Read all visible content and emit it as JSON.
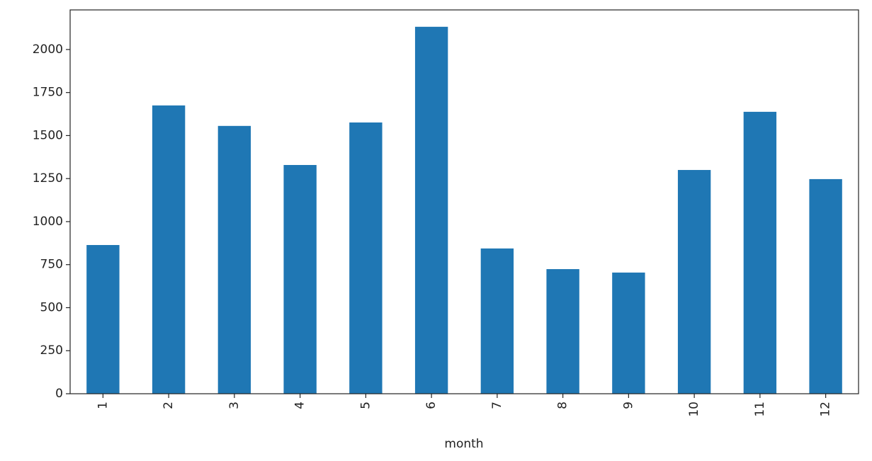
{
  "chart_data": {
    "type": "bar",
    "x_label": "month",
    "categories": [
      "1",
      "2",
      "3",
      "4",
      "5",
      "6",
      "7",
      "8",
      "9",
      "10",
      "11",
      "12"
    ],
    "values": [
      864,
      1675,
      1556,
      1329,
      1576,
      2132,
      844,
      724,
      704,
      1300,
      1638,
      1247
    ],
    "color": "#1f77b4",
    "ylim": [
      0,
      2230
    ],
    "yticks": [
      0,
      250,
      500,
      750,
      1000,
      1250,
      1500,
      1750,
      2000
    ],
    "grid": false
  }
}
